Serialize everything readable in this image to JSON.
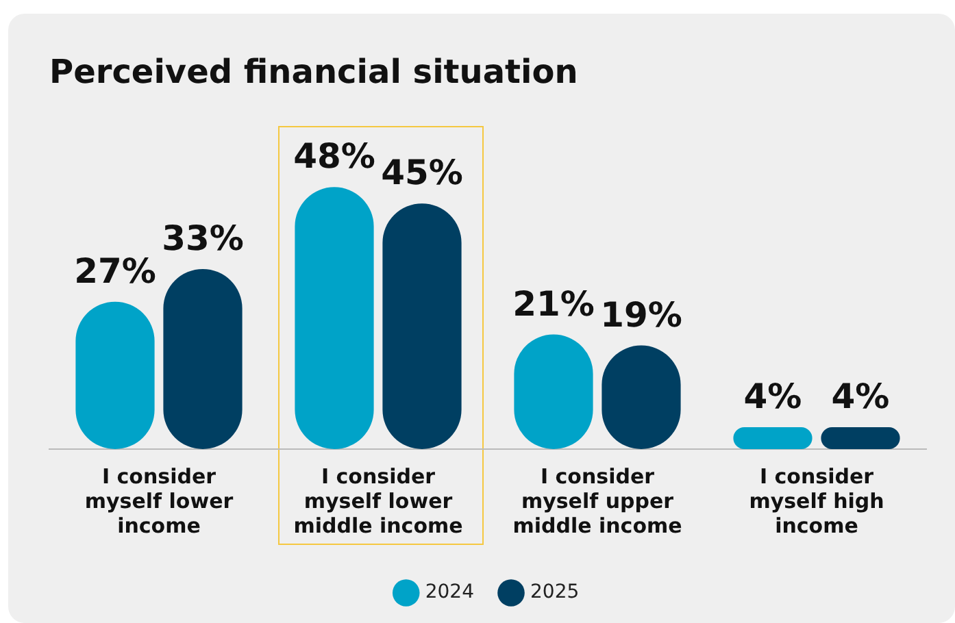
{
  "chart_data": {
    "type": "bar",
    "title": "Perceived financial situation",
    "categories": [
      "I consider myself lower income",
      "I consider myself lower middle income",
      "I consider myself upper middle income",
      "I consider myself high income"
    ],
    "series": [
      {
        "name": "2024",
        "color": "#00a3c8",
        "values": [
          27,
          48,
          21,
          4
        ],
        "value_labels": [
          "27%",
          "48%",
          "21%",
          "4%"
        ]
      },
      {
        "name": "2025",
        "color": "#003f62",
        "values": [
          33,
          45,
          19,
          4
        ],
        "value_labels": [
          "33%",
          "45%",
          "19%",
          "4%"
        ]
      }
    ],
    "legend": "bottom",
    "grid": false
  }
}
